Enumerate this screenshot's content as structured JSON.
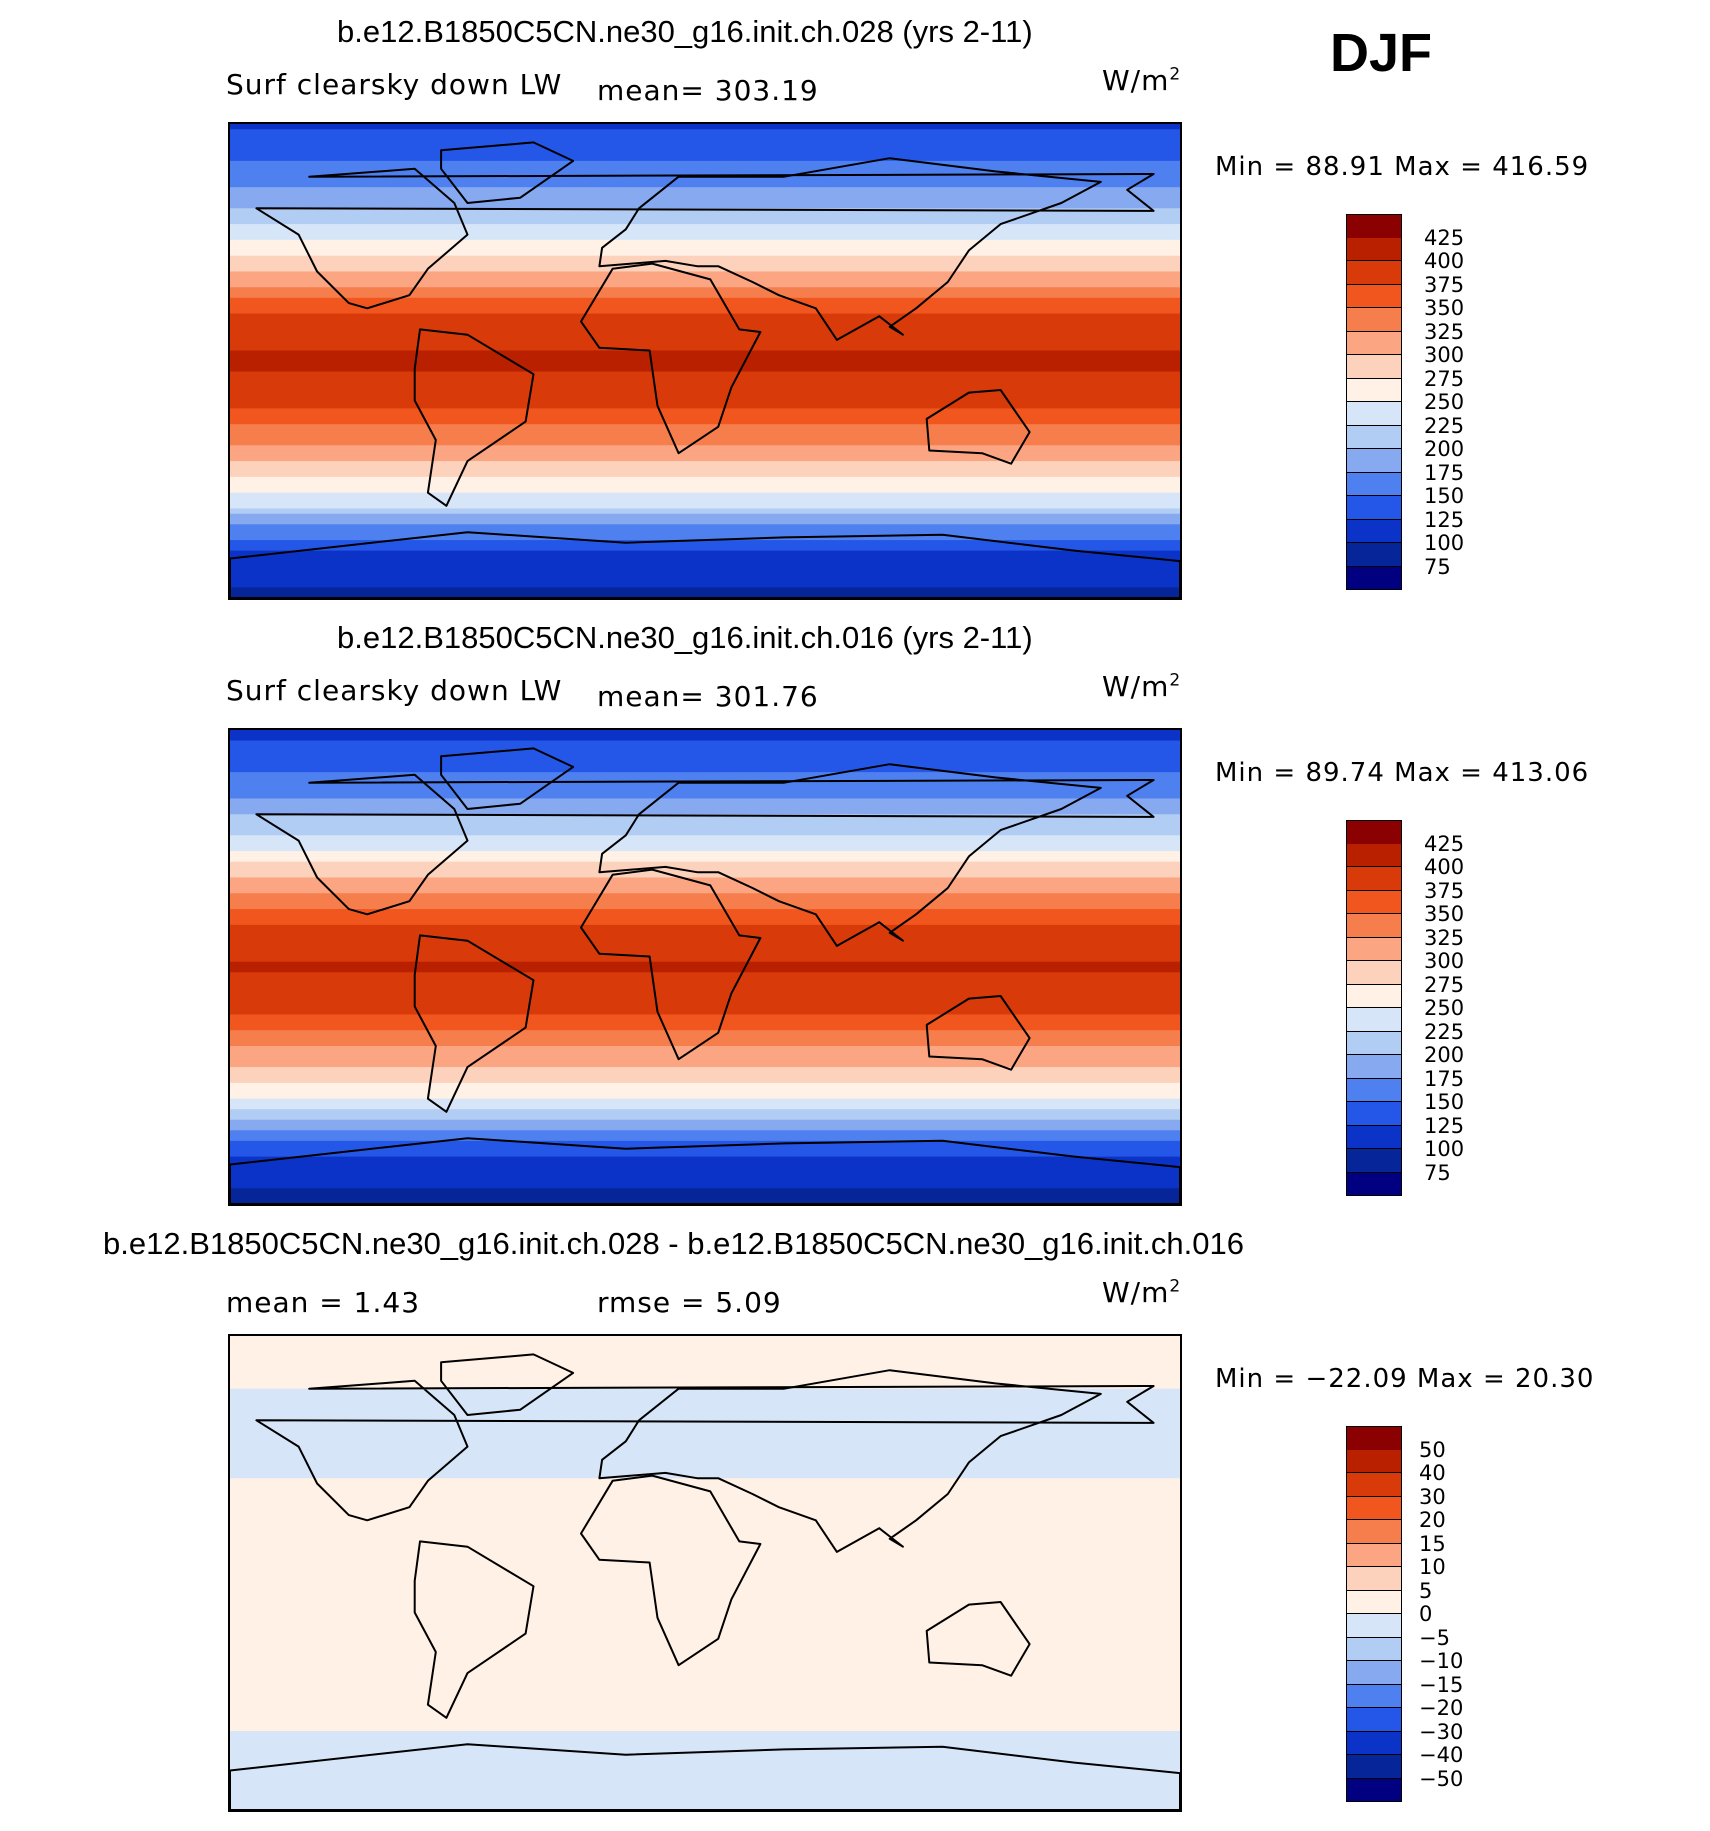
{
  "season": "DJF",
  "chart_data": [
    {
      "type": "heatmap",
      "title": "b.e12.B1850C5CN.ne30_g16.init.ch.028 (yrs 2-11)",
      "variable": "Surf clearsky down LW",
      "mean_text": "mean= 303.19",
      "units_base": "W/m",
      "units_exp": "2",
      "minmax_text": "Min =   88.91  Max  =  416.59",
      "stats": {
        "min": 88.91,
        "max": 416.59,
        "mean": 303.19
      },
      "colorbar": {
        "levels": [
          "425",
          "400",
          "375",
          "350",
          "325",
          "300",
          "275",
          "250",
          "225",
          "200",
          "175",
          "150",
          "125",
          "100",
          "75"
        ],
        "colors": [
          "#8b0000",
          "#b82000",
          "#d93a0a",
          "#f0561e",
          "#f57e4c",
          "#fba582",
          "#fdd2bc",
          "#fff1e6",
          "#d6e6f8",
          "#b2cdf3",
          "#86a9f0",
          "#4f80f0",
          "#2457e8",
          "#0c33c8",
          "#062598",
          "#000080"
        ]
      },
      "field_profile": [
        {
          "lat": 90,
          "value": 120
        },
        {
          "lat": 75,
          "value": 150
        },
        {
          "lat": 60,
          "value": 190
        },
        {
          "lat": 45,
          "value": 250
        },
        {
          "lat": 30,
          "value": 320
        },
        {
          "lat": 15,
          "value": 385
        },
        {
          "lat": 0,
          "value": 405
        },
        {
          "lat": -15,
          "value": 385
        },
        {
          "lat": -30,
          "value": 330
        },
        {
          "lat": -45,
          "value": 270
        },
        {
          "lat": -55,
          "value": 225
        },
        {
          "lat": -65,
          "value": 160
        },
        {
          "lat": -75,
          "value": 110
        },
        {
          "lat": -90,
          "value": 95
        }
      ]
    },
    {
      "type": "heatmap",
      "title": "b.e12.B1850C5CN.ne30_g16.init.ch.016 (yrs 2-11)",
      "variable": "Surf clearsky down LW",
      "mean_text": "mean= 301.76",
      "units_base": "W/m",
      "units_exp": "2",
      "minmax_text": "Min =   89.74  Max  =  413.06",
      "stats": {
        "min": 89.74,
        "max": 413.06,
        "mean": 301.76
      },
      "colorbar": {
        "levels": [
          "425",
          "400",
          "375",
          "350",
          "325",
          "300",
          "275",
          "250",
          "225",
          "200",
          "175",
          "150",
          "125",
          "100",
          "75"
        ],
        "colors": [
          "#8b0000",
          "#b82000",
          "#d93a0a",
          "#f0561e",
          "#f57e4c",
          "#fba582",
          "#fdd2bc",
          "#fff1e6",
          "#d6e6f8",
          "#b2cdf3",
          "#86a9f0",
          "#4f80f0",
          "#2457e8",
          "#0c33c8",
          "#062598",
          "#000080"
        ]
      },
      "field_profile": [
        {
          "lat": 90,
          "value": 118
        },
        {
          "lat": 75,
          "value": 148
        },
        {
          "lat": 60,
          "value": 188
        },
        {
          "lat": 45,
          "value": 248
        },
        {
          "lat": 30,
          "value": 318
        },
        {
          "lat": 15,
          "value": 383
        },
        {
          "lat": 0,
          "value": 403
        },
        {
          "lat": -15,
          "value": 383
        },
        {
          "lat": -30,
          "value": 328
        },
        {
          "lat": -45,
          "value": 268
        },
        {
          "lat": -55,
          "value": 223
        },
        {
          "lat": -65,
          "value": 158
        },
        {
          "lat": -75,
          "value": 108
        },
        {
          "lat": -90,
          "value": 93
        }
      ]
    },
    {
      "type": "heatmap",
      "title": "b.e12.B1850C5CN.ne30_g16.init.ch.028 - b.e12.B1850C5CN.ne30_g16.init.ch.016",
      "variable": "",
      "mean_text": "mean =    1.43",
      "rmse_text": "rmse =    5.09",
      "units_base": "W/m",
      "units_exp": "2",
      "minmax_text": "Min = −22.09  Max  =   20.30",
      "stats": {
        "min": -22.09,
        "max": 20.3,
        "mean": 1.43,
        "rmse": 5.09
      },
      "colorbar": {
        "levels": [
          "50",
          "40",
          "30",
          "20",
          "15",
          "10",
          "5",
          "0",
          "−5",
          "−10",
          "−15",
          "−20",
          "−30",
          "−40",
          "−50"
        ],
        "colors": [
          "#8b0000",
          "#b82000",
          "#d93a0a",
          "#f0561e",
          "#f57e4c",
          "#fba582",
          "#fdd2bc",
          "#fff1e6",
          "#d6e6f8",
          "#b2cdf3",
          "#86a9f0",
          "#4f80f0",
          "#2457e8",
          "#0c33c8",
          "#062598",
          "#000080"
        ]
      },
      "field_profile": [
        {
          "lat": 90,
          "value": 3
        },
        {
          "lat": 75,
          "value": 1
        },
        {
          "lat": 60,
          "value": -2
        },
        {
          "lat": 45,
          "value": -4
        },
        {
          "lat": 30,
          "value": 2
        },
        {
          "lat": 15,
          "value": 3
        },
        {
          "lat": 0,
          "value": 2
        },
        {
          "lat": -15,
          "value": 4
        },
        {
          "lat": -30,
          "value": 5
        },
        {
          "lat": -45,
          "value": 3
        },
        {
          "lat": -55,
          "value": 1
        },
        {
          "lat": -65,
          "value": -1
        },
        {
          "lat": -75,
          "value": -2
        },
        {
          "lat": -90,
          "value": -3
        }
      ]
    }
  ]
}
